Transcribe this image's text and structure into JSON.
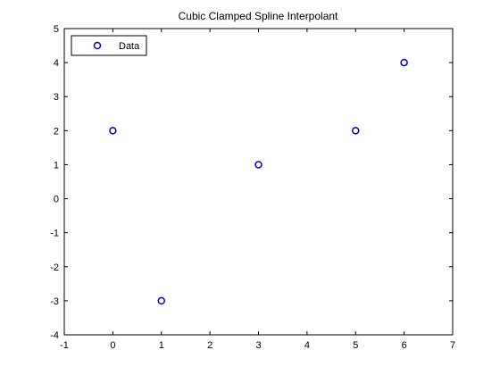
{
  "chart_data": {
    "type": "scatter",
    "title": "Cubic Clamped Spline Interpolant",
    "xlabel": "",
    "ylabel": "",
    "xlim": [
      -1,
      7
    ],
    "ylim": [
      -4,
      5
    ],
    "xticks": [
      "-1",
      "0",
      "1",
      "2",
      "3",
      "4",
      "5",
      "6",
      "7"
    ],
    "yticks": [
      "-4",
      "-3",
      "-2",
      "-1",
      "0",
      "1",
      "2",
      "3",
      "4",
      "5"
    ],
    "grid": false,
    "legend_position": "top-left",
    "series": [
      {
        "name": "Data",
        "color": "#0000cc",
        "marker": "circle-open",
        "x": [
          0,
          1,
          3,
          5,
          6
        ],
        "y": [
          2,
          -3,
          1,
          2,
          4
        ]
      }
    ]
  }
}
